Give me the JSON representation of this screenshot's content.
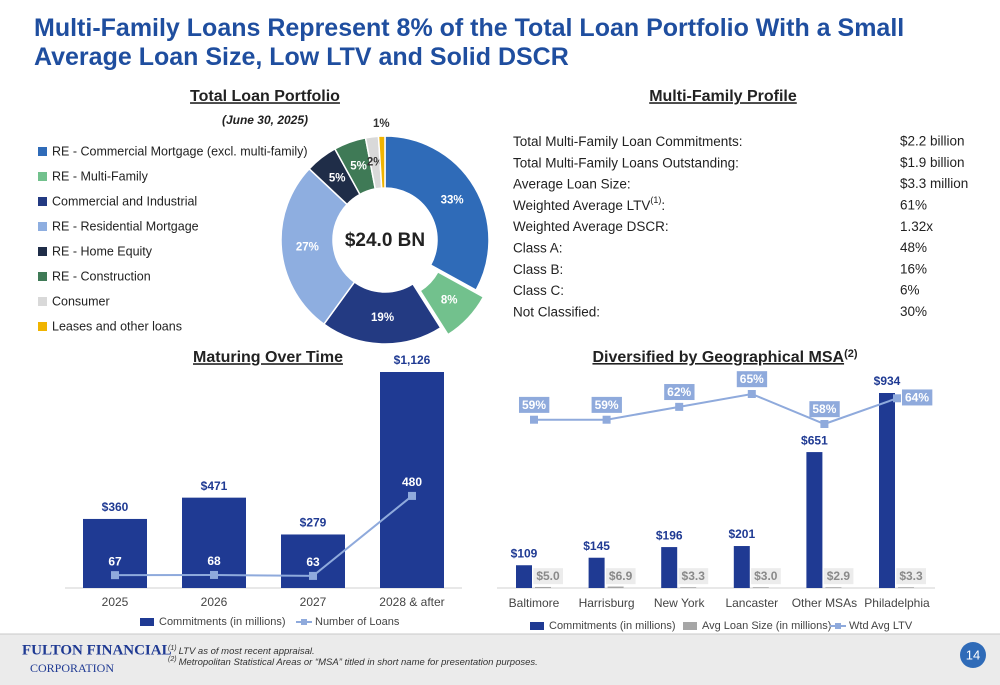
{
  "header": {
    "title": "Multi-Family Loans Represent 8% of the Total Loan Portfolio With a Small Average Loan Size, Low LTV and Solid DSCR"
  },
  "chart_data": [
    {
      "type": "pie",
      "title": "Total Loan Portfolio",
      "subtitle": "(June 30, 2025)",
      "center_label": "$24.0 BN",
      "categories": [
        "RE - Commercial Mortgage (excl. multi-family)",
        "RE - Multi-Family",
        "Commercial and Industrial",
        "RE - Residential Mortgage",
        "RE - Home Equity",
        "RE - Construction",
        "Consumer",
        "Leases and other loans"
      ],
      "values": [
        33,
        8,
        19,
        27,
        5,
        5,
        2,
        1
      ],
      "value_labels": [
        "33%",
        "8%",
        "19%",
        "27%",
        "5%",
        "5%",
        "2%",
        "1%"
      ],
      "colors": [
        "#2f6bb8",
        "#72c18d",
        "#233a82",
        "#8eaee0",
        "#1f2d48",
        "#3f7a56",
        "#d9d9d9",
        "#f0b400"
      ],
      "exploded": [
        false,
        true,
        false,
        false,
        false,
        false,
        false,
        false
      ]
    },
    {
      "type": "bar",
      "title": "Maturing Over Time",
      "categories": [
        "2025",
        "2026",
        "2027",
        "2028 & after"
      ],
      "series": [
        {
          "name": "Commitments (in millions)",
          "type": "bar",
          "color": "#1f3a93",
          "values": [
            360,
            471,
            279,
            1126
          ],
          "value_labels": [
            "$360",
            "$471",
            "$279",
            "$1,126"
          ]
        },
        {
          "name": "Number of Loans",
          "type": "line",
          "color": "#8faadc",
          "values": [
            67,
            68,
            63,
            480
          ]
        }
      ]
    },
    {
      "type": "bar",
      "title": "Diversified by Geographical MSA",
      "title_note": "(2)",
      "categories": [
        "Baltimore",
        "Harrisburg",
        "New York",
        "Lancaster",
        "Other MSAs",
        "Philadelphia"
      ],
      "series": [
        {
          "name": "Commitments (in millions)",
          "type": "bar",
          "color": "#1f3a93",
          "values": [
            109,
            145,
            196,
            201,
            651,
            934
          ],
          "value_labels": [
            "$109",
            "$145",
            "$196",
            "$201",
            "$651",
            "$934"
          ]
        },
        {
          "name": "Avg Loan Size (in millions)",
          "type": "bar",
          "color": "#a6a6a6",
          "values": [
            5.0,
            6.9,
            3.3,
            3.0,
            2.9,
            3.3
          ],
          "value_labels": [
            "$5.0",
            "$6.9",
            "$3.3",
            "$3.0",
            "$2.9",
            "$3.3"
          ]
        },
        {
          "name": "Wtd Avg LTV",
          "type": "line",
          "axis": "y2",
          "color": "#8faadc",
          "values": [
            59,
            59,
            62,
            65,
            58,
            64
          ],
          "value_labels": [
            "59%",
            "59%",
            "62%",
            "65%",
            "58%",
            "64%"
          ]
        }
      ]
    }
  ],
  "multifamily_profile": {
    "title": "Multi-Family Profile",
    "rows": [
      {
        "label": "Total Multi-Family Loan Commitments:",
        "value": "$2.2 billion"
      },
      {
        "label": "Total Multi-Family Loans Outstanding:",
        "value": "$1.9 billion"
      },
      {
        "label": "Average Loan Size:",
        "value": "$3.3 million"
      },
      {
        "label": "Weighted Average LTV",
        "note": "(1)",
        "label_end": ":",
        "value": "61%"
      },
      {
        "label": "Weighted Average DSCR:",
        "value": "1.32x"
      },
      {
        "label": "Class A:",
        "value": "48%"
      },
      {
        "label": "Class B:",
        "value": "16%"
      },
      {
        "label": "Class C:",
        "value": "6%"
      },
      {
        "label": "Not Classified:",
        "value": "30%"
      }
    ]
  },
  "footnotes": [
    {
      "mark": "(1)",
      "text": "LTV as of most recent appraisal."
    },
    {
      "mark": "(2)",
      "text": "Metropolitan Statistical Areas or “MSA” titled in short name for presentation purposes."
    }
  ],
  "logo": {
    "line1": "FULTON FINANCIAL",
    "line2": "CORPORATION"
  },
  "page_number": 14
}
